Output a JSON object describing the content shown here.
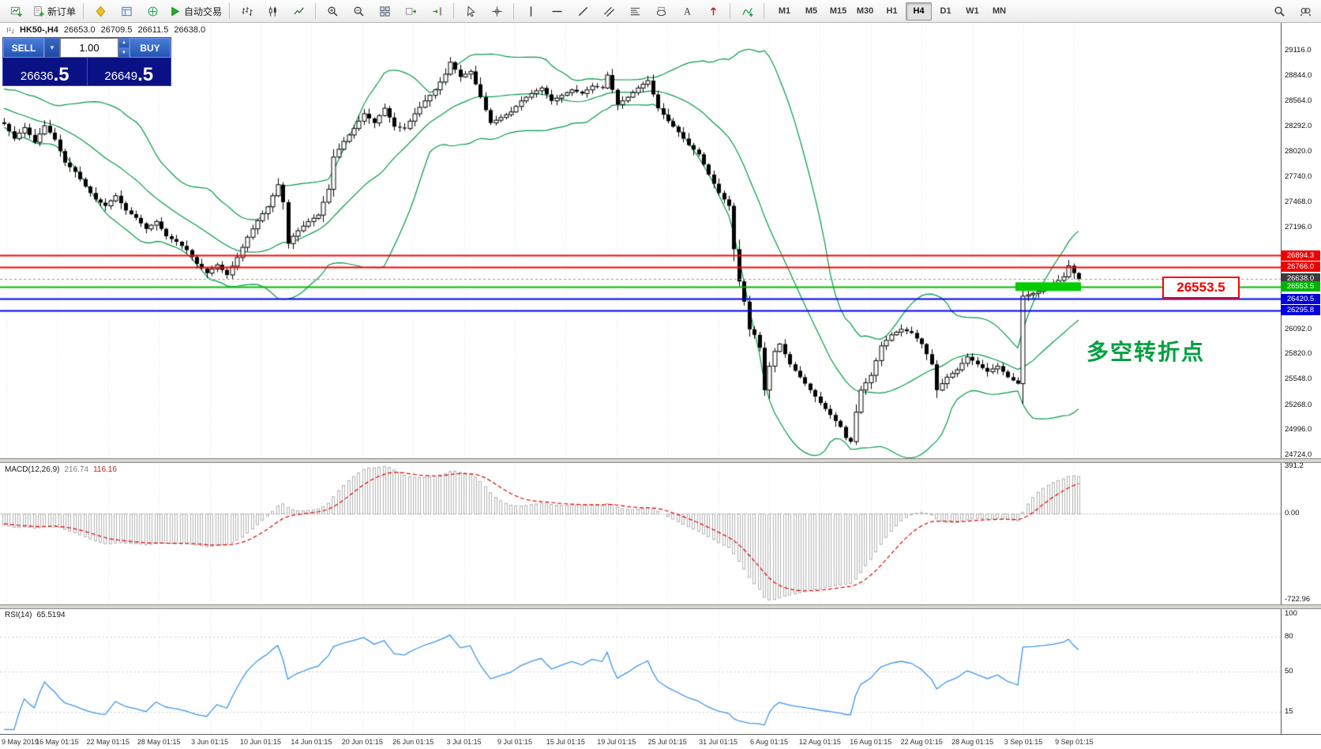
{
  "toolbar": {
    "new_order_label": "新订单",
    "auto_trading_label": "自动交易",
    "timeframes": [
      {
        "label": "M1",
        "active": false
      },
      {
        "label": "M5",
        "active": false
      },
      {
        "label": "M15",
        "active": false
      },
      {
        "label": "M30",
        "active": false
      },
      {
        "label": "H1",
        "active": false
      },
      {
        "label": "H4",
        "active": true
      },
      {
        "label": "D1",
        "active": false
      },
      {
        "label": "W1",
        "active": false
      },
      {
        "label": "MN",
        "active": false
      }
    ],
    "icon_names": [
      "new-chart",
      "new-order",
      "market-watch",
      "data-window",
      "navigator",
      "auto-trading",
      "bar-chart",
      "candlestick-chart",
      "line-chart",
      "zoom-in",
      "zoom-out",
      "tile-windows",
      "auto-scroll",
      "chart-shift",
      "cursor",
      "crosshair",
      "vertical-line",
      "horizontal-line",
      "trendline",
      "equidistant-channel",
      "fibonacci-retracement",
      "shapes",
      "text",
      "arrows",
      "indicators",
      "search",
      "find"
    ]
  },
  "order_panel": {
    "sell_label": "SELL",
    "buy_label": "BUY",
    "volume": "1.00",
    "bid_main": "26636",
    "bid_frac": ".5",
    "ask_main": "26649",
    "ask_frac": ".5"
  },
  "chart_header": {
    "symbol_period": "HK50-,H4",
    "open": "26653.0",
    "high": "26709.5",
    "low": "26611.5",
    "close": "26638.0"
  },
  "annotations": {
    "price_callout": "26553.5",
    "turning_point": "多空转折点"
  },
  "indicators_panel": {
    "macd_label": "MACD(12,26,9)",
    "macd_main_value": "216.74",
    "macd_signal_value": "116.16",
    "rsi_label": "RSI(14)",
    "rsi_value": "65.5194"
  },
  "chart_data": {
    "type": "candlestick",
    "title": "HK50-,H4",
    "ohlc_latest": {
      "open": 26653.0,
      "high": 26709.5,
      "low": 26611.5,
      "close": 26638.0
    },
    "price_axis_ticks": [
      "29116.0",
      "28844.0",
      "28564.0",
      "28292.0",
      "28020.0",
      "27740.0",
      "27468.0",
      "27196.0",
      "26092.0",
      "25820.0",
      "25548.0",
      "25268.0",
      "24996.0",
      "24724.0"
    ],
    "price_tags": [
      {
        "text": "26894.3",
        "color": "#ee0000"
      },
      {
        "text": "26766.0",
        "color": "#ee0000"
      },
      {
        "text": "26638.0",
        "color": "#3c3c3c"
      },
      {
        "text": "26553.5",
        "color": "#00b300"
      },
      {
        "text": "26420.5",
        "color": "#0000dd"
      },
      {
        "text": "26295.8",
        "color": "#0000dd"
      }
    ],
    "horizontal_lines": [
      {
        "value": 26894.3,
        "color": "#ff0000",
        "width": 2,
        "style": "solid"
      },
      {
        "value": 26766.0,
        "color": "#ff0000",
        "width": 2,
        "style": "solid"
      },
      {
        "value": 26638.0,
        "color": "#9a9a9a",
        "width": 1,
        "style": "dash"
      },
      {
        "value": 26553.5,
        "color": "#00bb00",
        "width": 2,
        "style": "solid"
      },
      {
        "value": 26420.5,
        "color": "#0000ee",
        "width": 2,
        "style": "solid"
      },
      {
        "value": 26295.8,
        "color": "#0000ee",
        "width": 2,
        "style": "solid"
      }
    ],
    "highlight_segment": {
      "value": 26553.5,
      "from_index": 200,
      "to_index": 212,
      "color": "#00cc00"
    },
    "bollinger": {
      "period": 20,
      "deviation": 2,
      "color": "#009944"
    },
    "candle_count": 213,
    "close_waypoints": [
      [
        0,
        28320
      ],
      [
        2,
        28160
      ],
      [
        4,
        28280
      ],
      [
        6,
        28120
      ],
      [
        8,
        28300
      ],
      [
        10,
        28150
      ],
      [
        12,
        27900
      ],
      [
        14,
        27800
      ],
      [
        16,
        27640
      ],
      [
        18,
        27500
      ],
      [
        20,
        27430
      ],
      [
        22,
        27540
      ],
      [
        24,
        27380
      ],
      [
        26,
        27300
      ],
      [
        28,
        27180
      ],
      [
        30,
        27260
      ],
      [
        32,
        27100
      ],
      [
        34,
        27040
      ],
      [
        36,
        26950
      ],
      [
        38,
        26800
      ],
      [
        40,
        26700
      ],
      [
        42,
        26790
      ],
      [
        44,
        26680
      ],
      [
        46,
        26870
      ],
      [
        48,
        27090
      ],
      [
        50,
        27270
      ],
      [
        52,
        27420
      ],
      [
        54,
        27660
      ],
      [
        55,
        27470
      ],
      [
        56,
        27020
      ],
      [
        57,
        27100
      ],
      [
        58,
        27160
      ],
      [
        60,
        27260
      ],
      [
        62,
        27330
      ],
      [
        64,
        27610
      ],
      [
        65,
        27960
      ],
      [
        67,
        28130
      ],
      [
        69,
        28270
      ],
      [
        71,
        28430
      ],
      [
        73,
        28330
      ],
      [
        75,
        28490
      ],
      [
        77,
        28290
      ],
      [
        79,
        28270
      ],
      [
        81,
        28430
      ],
      [
        83,
        28570
      ],
      [
        85,
        28690
      ],
      [
        87,
        28860
      ],
      [
        88,
        28990
      ],
      [
        90,
        28830
      ],
      [
        92,
        28890
      ],
      [
        94,
        28610
      ],
      [
        96,
        28330
      ],
      [
        98,
        28390
      ],
      [
        100,
        28450
      ],
      [
        102,
        28570
      ],
      [
        104,
        28650
      ],
      [
        106,
        28710
      ],
      [
        108,
        28570
      ],
      [
        110,
        28630
      ],
      [
        112,
        28690
      ],
      [
        114,
        28650
      ],
      [
        116,
        28730
      ],
      [
        118,
        28710
      ],
      [
        119,
        28850
      ],
      [
        121,
        28530
      ],
      [
        123,
        28610
      ],
      [
        125,
        28710
      ],
      [
        127,
        28790
      ],
      [
        129,
        28490
      ],
      [
        131,
        28350
      ],
      [
        133,
        28230
      ],
      [
        135,
        28090
      ],
      [
        137,
        27990
      ],
      [
        139,
        27770
      ],
      [
        141,
        27570
      ],
      [
        143,
        27430
      ],
      [
        144,
        26960
      ],
      [
        145,
        26610
      ],
      [
        146,
        26390
      ],
      [
        147,
        26090
      ],
      [
        148,
        26030
      ],
      [
        149,
        25890
      ],
      [
        150,
        25430
      ],
      [
        151,
        25690
      ],
      [
        152,
        25850
      ],
      [
        153,
        25930
      ],
      [
        155,
        25710
      ],
      [
        157,
        25570
      ],
      [
        159,
        25430
      ],
      [
        161,
        25290
      ],
      [
        163,
        25160
      ],
      [
        165,
        25030
      ],
      [
        166,
        24910
      ],
      [
        167,
        24870
      ],
      [
        168,
        25190
      ],
      [
        169,
        25430
      ],
      [
        171,
        25590
      ],
      [
        173,
        25910
      ],
      [
        175,
        26030
      ],
      [
        177,
        26090
      ],
      [
        179,
        26050
      ],
      [
        181,
        25930
      ],
      [
        183,
        25710
      ],
      [
        184,
        25430
      ],
      [
        186,
        25570
      ],
      [
        188,
        25650
      ],
      [
        190,
        25790
      ],
      [
        192,
        25710
      ],
      [
        194,
        25630
      ],
      [
        196,
        25690
      ],
      [
        198,
        25570
      ],
      [
        200,
        25500
      ],
      [
        201,
        26450
      ],
      [
        203,
        26480
      ],
      [
        205,
        26520
      ],
      [
        207,
        26580
      ],
      [
        209,
        26660
      ],
      [
        210,
        26780
      ],
      [
        211,
        26700
      ],
      [
        212,
        26638
      ]
    ],
    "macd": {
      "params": [
        12,
        26,
        9
      ],
      "axis_labels": [
        "391.2",
        "0.00",
        "-722.96"
      ],
      "axis_max": 391.2,
      "axis_min": -722.96,
      "histogram_color": "#b0b0b0",
      "signal_color": "#e00000",
      "signal_style": "dashed"
    },
    "rsi": {
      "period": 14,
      "axis_labels": [
        "100",
        "80",
        "50",
        "15"
      ],
      "levels": [
        80,
        50,
        15
      ],
      "line_color": "#3d96e8",
      "last_value": 65.5194
    },
    "time_axis_labels": [
      "9 May 2019",
      "16 May 01:15",
      "22 May 01:15",
      "28 May 01:15",
      "3 Jun 01:15",
      "10 Jun 01:15",
      "14 Jun 01:15",
      "20 Jun 01:15",
      "26 Jun 01:15",
      "3 Jul 01:15",
      "9 Jul 01:15",
      "15 Jul 01:15",
      "19 Jul 01:15",
      "25 Jul 01:15",
      "31 Jul 01:15",
      "6 Aug 01:15",
      "12 Aug 01:15",
      "16 Aug 01:15",
      "22 Aug 01:15",
      "28 Aug 01:15",
      "3 Sep 01:15",
      "9 Sep 01:15"
    ]
  }
}
